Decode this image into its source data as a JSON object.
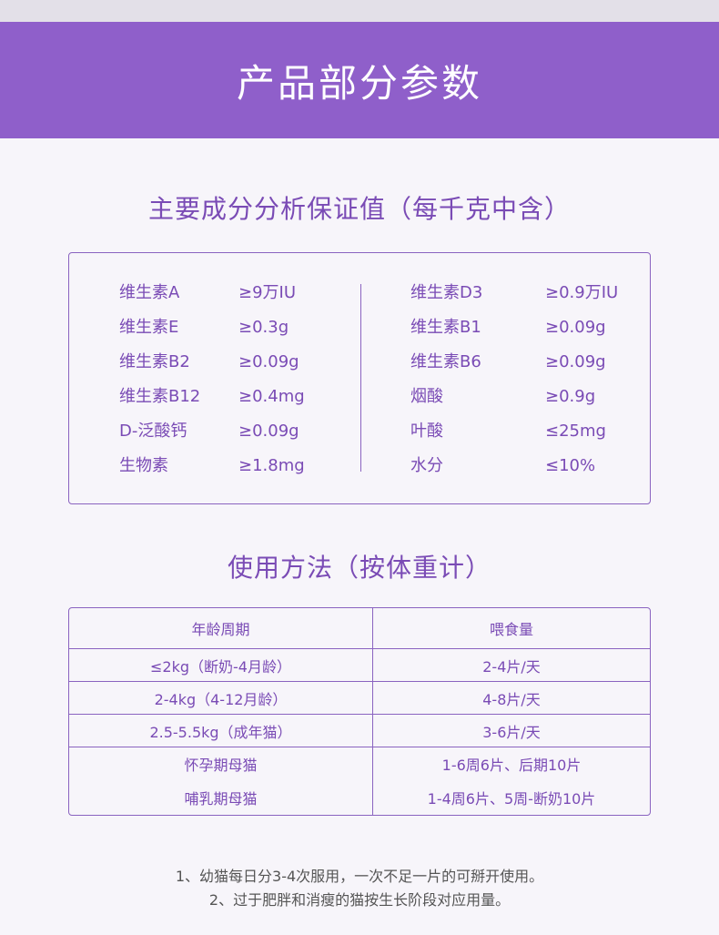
{
  "banner": {
    "title": "产品部分参数"
  },
  "ingredients": {
    "title": "主要成分分析保证值（每千克中含）",
    "left": [
      {
        "name": "维生素A",
        "value": "≥9万IU"
      },
      {
        "name": "维生素E",
        "value": "≥0.3g"
      },
      {
        "name": "维生素B2",
        "value": "≥0.09g"
      },
      {
        "name": "维生素B12",
        "value": "≥0.4mg"
      },
      {
        "name": "D-泛酸钙",
        "value": "≥0.09g"
      },
      {
        "name": "生物素",
        "value": "≥1.8mg"
      }
    ],
    "right": [
      {
        "name": "维生素D3",
        "value": "≥0.9万IU"
      },
      {
        "name": "维生素B1",
        "value": "≥0.09g"
      },
      {
        "name": "维生素B6",
        "value": "≥0.09g"
      },
      {
        "name": "烟酸",
        "value": "≥0.9g"
      },
      {
        "name": "叶酸",
        "value": "≤25mg"
      },
      {
        "name": "水分",
        "value": "≤10%"
      }
    ]
  },
  "usage": {
    "title": "使用方法（按体重计）",
    "headers": [
      "年龄周期",
      "喂食量"
    ],
    "rows": [
      [
        "≤2kg（断奶-4月龄）",
        "2-4片/天"
      ],
      [
        "2-4kg（4-12月龄）",
        "4-8片/天"
      ],
      [
        "2.5-5.5kg（成年猫）",
        "3-6片/天"
      ],
      [
        "怀孕期母猫",
        "1-6周6片、后期10片"
      ],
      [
        "哺乳期母猫",
        "1-4周6片、5周-断奶10片"
      ]
    ]
  },
  "notes": [
    "1、幼猫每日分3-4次服用，一次不足一片的可掰开使用。",
    "2、过于肥胖和消瘦的猫按生长阶段对应用量。"
  ]
}
